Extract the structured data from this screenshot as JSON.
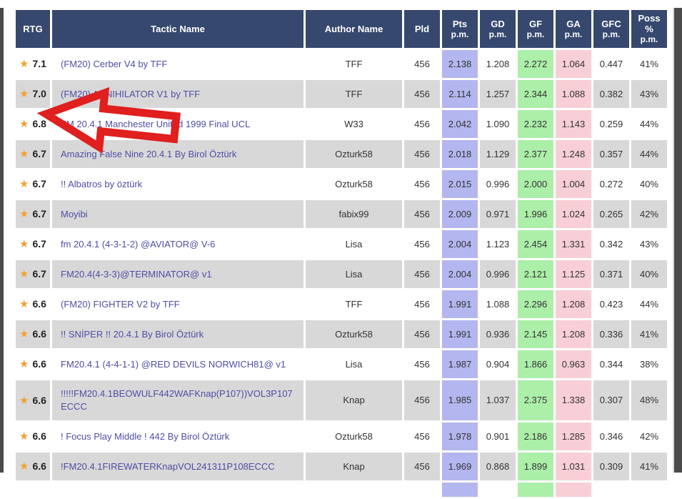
{
  "colors": {
    "header_bg": "#36486e",
    "row_alt_bg": "#d8d8d8",
    "pts_col_bg": "#b4b6ef",
    "gf_col_bg": "#abefa8",
    "ga_col_bg": "#f8cfd6",
    "link_color": "#4e4ea5",
    "star_color": "#f0a232",
    "arrow_red": "#e01f1f",
    "screen_edge": "#4b4b4b"
  },
  "icons": {
    "rating_star": "★"
  },
  "annotation": {
    "type": "red-arrow-left",
    "points_at_row": "FM 20.4.1 Manchester United 1999 Final UCL"
  },
  "table": {
    "columns": [
      {
        "label": "RTG",
        "sub": ""
      },
      {
        "label": "Tactic Name",
        "sub": ""
      },
      {
        "label": "Author Name",
        "sub": ""
      },
      {
        "label": "Pld",
        "sub": ""
      },
      {
        "label": "Pts",
        "sub": "p.m."
      },
      {
        "label": "GD",
        "sub": "p.m."
      },
      {
        "label": "GF",
        "sub": "p.m."
      },
      {
        "label": "GA",
        "sub": "p.m."
      },
      {
        "label": "GFC",
        "sub": "p.m."
      },
      {
        "label": "Poss %",
        "sub": "p.m."
      }
    ],
    "rows": [
      {
        "rtg": "7.1",
        "tactic": "(FM20) Cerber V4 by TFF",
        "author": "TFF",
        "pld": "456",
        "pts": "2.138",
        "gd": "1.208",
        "gf": "2.272",
        "ga": "1.064",
        "gfc": "0.447",
        "poss": "41%"
      },
      {
        "rtg": "7.0",
        "tactic": "(FM20) ANNIHILATOR V1 by TFF",
        "author": "TFF",
        "pld": "456",
        "pts": "2.114",
        "gd": "1.257",
        "gf": "2.344",
        "ga": "1.088",
        "gfc": "0.382",
        "poss": "43%"
      },
      {
        "rtg": "6.8",
        "tactic": "FM 20.4.1 Manchester United 1999 Final UCL",
        "author": "W33",
        "pld": "456",
        "pts": "2.042",
        "gd": "1.090",
        "gf": "2.232",
        "ga": "1.143",
        "gfc": "0.259",
        "poss": "44%"
      },
      {
        "rtg": "6.7",
        "tactic": "Amazing False Nine 20.4.1 By Birol Öztürk",
        "author": "Ozturk58",
        "pld": "456",
        "pts": "2.018",
        "gd": "1.129",
        "gf": "2.377",
        "ga": "1.248",
        "gfc": "0.357",
        "poss": "44%"
      },
      {
        "rtg": "6.7",
        "tactic": "!! Albatros by öztürk",
        "author": "Ozturk58",
        "pld": "456",
        "pts": "2.015",
        "gd": "0.996",
        "gf": "2.000",
        "ga": "1.004",
        "gfc": "0.272",
        "poss": "40%"
      },
      {
        "rtg": "6.7",
        "tactic": "Moyibi",
        "author": "fabix99",
        "pld": "456",
        "pts": "2.009",
        "gd": "0.971",
        "gf": "1.996",
        "ga": "1.024",
        "gfc": "0.265",
        "poss": "42%"
      },
      {
        "rtg": "6.7",
        "tactic": "fm 20.4.1 (4-3-1-2) @AVIATOR@ V-6",
        "author": "Lisa",
        "pld": "456",
        "pts": "2.004",
        "gd": "1.123",
        "gf": "2.454",
        "ga": "1.331",
        "gfc": "0.342",
        "poss": "43%"
      },
      {
        "rtg": "6.7",
        "tactic": "FM20.4(4-3-3)@TERMINATOR@ v1",
        "author": "Lisa",
        "pld": "456",
        "pts": "2.004",
        "gd": "0.996",
        "gf": "2.121",
        "ga": "1.125",
        "gfc": "0.371",
        "poss": "40%"
      },
      {
        "rtg": "6.6",
        "tactic": "(FM20) FIGHTER V2 by TFF",
        "author": "TFF",
        "pld": "456",
        "pts": "1.991",
        "gd": "1.088",
        "gf": "2.296",
        "ga": "1.208",
        "gfc": "0.423",
        "poss": "44%"
      },
      {
        "rtg": "6.6",
        "tactic": "!! SNİPER !! 20.4.1 By Birol Öztürk",
        "author": "Ozturk58",
        "pld": "456",
        "pts": "1.991",
        "gd": "0.936",
        "gf": "2.145",
        "ga": "1.208",
        "gfc": "0.336",
        "poss": "41%"
      },
      {
        "rtg": "6.6",
        "tactic": "FM20.4.1 (4-4-1-1) @RED DEVILS NORWICH81@ v1",
        "author": "Lisa",
        "pld": "456",
        "pts": "1.987",
        "gd": "0.904",
        "gf": "1.866",
        "ga": "0.963",
        "gfc": "0.344",
        "poss": "38%"
      },
      {
        "rtg": "6.6",
        "tactic": "!!!!!FM20.4.1BEOWULF442WAFKnap(P107))VOL3P107ECCC",
        "author": "Knap",
        "pld": "456",
        "pts": "1.985",
        "gd": "1.037",
        "gf": "2.375",
        "ga": "1.338",
        "gfc": "0.307",
        "poss": "48%"
      },
      {
        "rtg": "6.6",
        "tactic": "! Focus Play Middle ! 442 By Birol Öztürk",
        "author": "Ozturk58",
        "pld": "456",
        "pts": "1.978",
        "gd": "0.901",
        "gf": "2.186",
        "ga": "1.285",
        "gfc": "0.346",
        "poss": "42%"
      },
      {
        "rtg": "6.6",
        "tactic": "!FM20.4.1FIREWATERKnapVOL241311P108ECCC",
        "author": "Knap",
        "pld": "456",
        "pts": "1.969",
        "gd": "0.868",
        "gf": "1.899",
        "ga": "1.031",
        "gfc": "0.309",
        "poss": "41%"
      },
      {
        "rtg": "",
        "tactic": "",
        "author": "",
        "pld": "",
        "pts": "",
        "gd": "",
        "gf": "",
        "ga": "",
        "gfc": "",
        "poss": "",
        "partial": true
      }
    ]
  }
}
